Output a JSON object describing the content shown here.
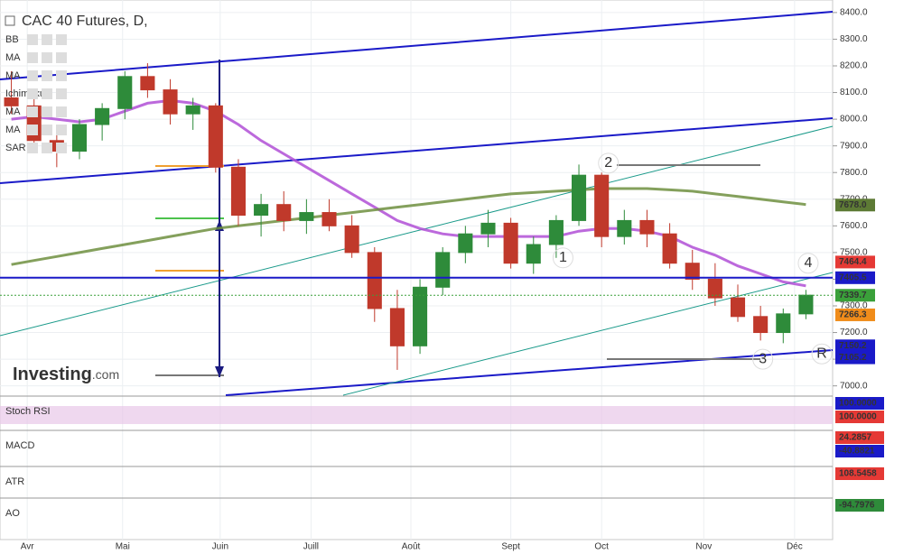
{
  "chart_data": {
    "type": "candlestick",
    "title": "CAC 40 Futures, D,",
    "indicators": [
      "BB",
      "MA",
      "MA",
      "Ichimoku",
      "MA",
      "MA",
      "SAR"
    ],
    "logo": "Investing",
    "logo_suffix": ".com",
    "xlim": [
      0,
      36
    ],
    "xticks": [
      {
        "value": 1.2,
        "label": "Avr"
      },
      {
        "value": 5.4,
        "label": "Mai"
      },
      {
        "value": 9.7,
        "label": "Juin"
      },
      {
        "value": 13.7,
        "label": "Juill"
      },
      {
        "value": 18.1,
        "label": "Août"
      },
      {
        "value": 22.5,
        "label": "Sept"
      },
      {
        "value": 26.5,
        "label": "Oct"
      },
      {
        "value": 31,
        "label": "Nov"
      },
      {
        "value": 35,
        "label": "Déc"
      }
    ],
    "ylim": [
      6965,
      8447
    ],
    "yticks": [
      {
        "value": 7000,
        "label": "7000.0"
      },
      {
        "value": 7100,
        "label": "7100.0"
      },
      {
        "value": 7200,
        "label": "7200.0"
      },
      {
        "value": 7300,
        "label": "7300.0"
      },
      {
        "value": 7400,
        "label": "7400.0"
      },
      {
        "value": 7500,
        "label": "7500.0"
      },
      {
        "value": 7600,
        "label": "7600.0"
      },
      {
        "value": 7700,
        "label": "7700.0"
      },
      {
        "value": 7800,
        "label": "7800.0"
      },
      {
        "value": 7900,
        "label": "7900.0"
      },
      {
        "value": 8000,
        "label": "8000.0"
      },
      {
        "value": 8100,
        "label": "8100.0"
      },
      {
        "value": 8200,
        "label": "8200.0"
      },
      {
        "value": 8300,
        "label": "8300.0"
      },
      {
        "value": 8400,
        "label": "8400.0"
      }
    ],
    "up_color": "#2e8b3a",
    "down_color": "#c0392b",
    "open": [
      8080,
      8050,
      7920,
      7880,
      7980,
      8040,
      8160,
      8110,
      8020,
      8050,
      7820,
      7640,
      7680,
      7620,
      7650,
      7600,
      7500,
      7290,
      7150,
      7370,
      7500,
      7570,
      7610,
      7460,
      7530,
      7620,
      7790,
      7560,
      7620,
      7570,
      7460,
      7400,
      7330,
      7260,
      7200,
      7270
    ],
    "high": [
      8180,
      8100,
      7980,
      8000,
      8060,
      8180,
      8210,
      8150,
      8080,
      8060,
      7850,
      7720,
      7730,
      7700,
      7700,
      7640,
      7520,
      7360,
      7400,
      7520,
      7600,
      7660,
      7630,
      7560,
      7640,
      7830,
      7800,
      7660,
      7660,
      7610,
      7510,
      7460,
      7380,
      7300,
      7290,
      7360
    ],
    "low": [
      8020,
      7900,
      7820,
      7850,
      7920,
      8000,
      8080,
      7980,
      7960,
      7800,
      7600,
      7560,
      7580,
      7570,
      7580,
      7480,
      7240,
      7060,
      7120,
      7340,
      7460,
      7520,
      7440,
      7420,
      7480,
      7600,
      7520,
      7530,
      7520,
      7440,
      7360,
      7300,
      7240,
      7170,
      7160,
      7250
    ],
    "close": [
      8050,
      7920,
      7880,
      7980,
      8040,
      8160,
      8110,
      8020,
      8050,
      7820,
      7640,
      7680,
      7620,
      7650,
      7600,
      7500,
      7290,
      7150,
      7370,
      7500,
      7570,
      7610,
      7460,
      7530,
      7620,
      7790,
      7560,
      7620,
      7570,
      7460,
      7400,
      7330,
      7260,
      7200,
      7270,
      7340
    ],
    "series": [
      {
        "color": "#b04fd6",
        "values": [
          8000,
          8010,
          8000,
          7990,
          8000,
          8030,
          8060,
          8070,
          8060,
          8030,
          7980,
          7920,
          7870,
          7820,
          7770,
          7720,
          7670,
          7620,
          7590,
          7570,
          7560,
          7560,
          7560,
          7560,
          7560,
          7580,
          7590,
          7590,
          7580,
          7560,
          7520,
          7490,
          7450,
          7420,
          7390,
          7375
        ]
      },
      {
        "color": "#6f8f3f",
        "values": [
          7455,
          7470,
          7485,
          7500,
          7515,
          7530,
          7545,
          7560,
          7575,
          7590,
          7600,
          7610,
          7620,
          7630,
          7640,
          7650,
          7660,
          7670,
          7680,
          7690,
          7700,
          7710,
          7720,
          7725,
          7730,
          7735,
          7740,
          7740,
          7740,
          7735,
          7730,
          7720,
          7710,
          7700,
          7690,
          7680
        ]
      }
    ],
    "price_lines": [
      {
        "value": 7405.5,
        "color": "#1a1ac8"
      },
      {
        "value": 7339.7,
        "color": "#3aa03a"
      }
    ],
    "badges": [
      {
        "value": 7678,
        "label": "7678.0",
        "color": "#5d7a35"
      },
      {
        "value": 7464.4,
        "label": "7464.4",
        "color": "#e53935"
      },
      {
        "value": 7405.5,
        "label": "7405.5",
        "color": "#1a1ac8"
      },
      {
        "value": 7339.7,
        "label": "7339.7",
        "color": "#3aa03a"
      },
      {
        "value": 7266.3,
        "label": "7266.3",
        "color": "#f08c1a"
      },
      {
        "value": 7150.2,
        "label": "7150.2",
        "color": "#1a1ac8"
      },
      {
        "value": 7105.2,
        "label": "7105.2",
        "color": "#1a1ac8"
      }
    ],
    "waves": [
      {
        "label": "1",
        "x": 24.8,
        "y": 7480
      },
      {
        "label": "2",
        "x": 26.8,
        "y": 7835
      },
      {
        "label": "3",
        "x": 33.6,
        "y": 7100
      },
      {
        "label": "4",
        "x": 35.6,
        "y": 7460
      },
      {
        "label": "R",
        "x": 36.2,
        "y": 7120
      }
    ],
    "panes": [
      {
        "name": "Stoch RSI",
        "labels": [
          {
            "text": "100.0000",
            "color": "#1a1ac8"
          },
          {
            "text": "100.0000",
            "color": "#e53935"
          }
        ]
      },
      {
        "name": "MACD",
        "labels": [
          {
            "text": "24.2857",
            "color": "#e53935"
          },
          {
            "text": "-40.8821",
            "color": "#1a1ac8"
          }
        ]
      },
      {
        "name": "ATR",
        "labels": [
          {
            "text": "108.5458",
            "color": "#e53935"
          }
        ]
      },
      {
        "name": "AO",
        "labels": [
          {
            "text": "-94.7976",
            "color": "#2e8b3a"
          }
        ]
      }
    ]
  }
}
